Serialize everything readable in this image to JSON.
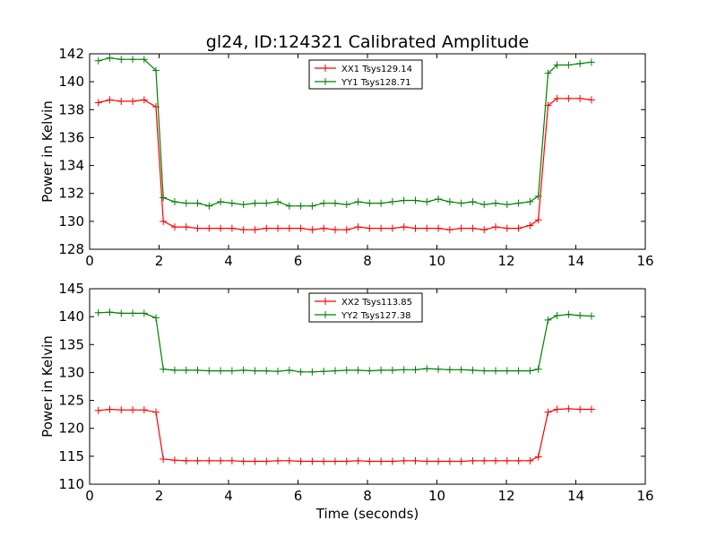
{
  "figure": {
    "title": "gl24, ID:124321 Calibrated Amplitude",
    "xlabel": "Time (seconds)"
  },
  "chart_data": [
    {
      "type": "line",
      "title": "gl24, ID:124321 Calibrated Amplitude",
      "xlabel": "",
      "ylabel": "Power in Kelvin",
      "xlim": [
        0,
        16
      ],
      "ylim": [
        128,
        142
      ],
      "xticks": [
        0,
        2,
        4,
        6,
        8,
        10,
        12,
        14,
        16
      ],
      "yticks": [
        128,
        130,
        132,
        134,
        136,
        138,
        140,
        142
      ],
      "grid": false,
      "legend_position": "top-center",
      "x": [
        0.25,
        0.58,
        0.91,
        1.24,
        1.57,
        1.91,
        2.12,
        2.45,
        2.78,
        3.11,
        3.44,
        3.77,
        4.1,
        4.43,
        4.76,
        5.09,
        5.42,
        5.75,
        6.08,
        6.41,
        6.74,
        7.07,
        7.4,
        7.73,
        8.06,
        8.39,
        8.72,
        9.05,
        9.38,
        9.71,
        10.04,
        10.37,
        10.7,
        11.03,
        11.36,
        11.69,
        12.02,
        12.35,
        12.68,
        12.92,
        13.2,
        13.46,
        13.79,
        14.12,
        14.45
      ],
      "series": [
        {
          "name": "XX1 Tsys129.14",
          "color": "#ff0000",
          "values": [
            138.5,
            138.7,
            138.6,
            138.6,
            138.7,
            138.2,
            130.0,
            129.6,
            129.6,
            129.5,
            129.5,
            129.5,
            129.5,
            129.4,
            129.4,
            129.5,
            129.5,
            129.5,
            129.5,
            129.4,
            129.5,
            129.4,
            129.4,
            129.6,
            129.5,
            129.5,
            129.5,
            129.6,
            129.5,
            129.5,
            129.5,
            129.4,
            129.5,
            129.5,
            129.4,
            129.6,
            129.5,
            129.5,
            129.7,
            130.1,
            138.3,
            138.8,
            138.8,
            138.8,
            138.7
          ]
        },
        {
          "name": "YY1 Tsys128.71",
          "color": "#008000",
          "values": [
            141.5,
            141.7,
            141.6,
            141.6,
            141.6,
            140.8,
            131.7,
            131.4,
            131.3,
            131.3,
            131.1,
            131.4,
            131.3,
            131.2,
            131.3,
            131.3,
            131.4,
            131.1,
            131.1,
            131.1,
            131.3,
            131.3,
            131.2,
            131.4,
            131.3,
            131.3,
            131.4,
            131.5,
            131.5,
            131.4,
            131.6,
            131.4,
            131.3,
            131.4,
            131.2,
            131.3,
            131.2,
            131.3,
            131.4,
            131.8,
            140.6,
            141.2,
            141.2,
            141.3,
            141.4
          ]
        }
      ]
    },
    {
      "type": "line",
      "title": "",
      "xlabel": "Time (seconds)",
      "ylabel": "Power in Kelvin",
      "xlim": [
        0,
        16
      ],
      "ylim": [
        110,
        145
      ],
      "xticks": [
        0,
        2,
        4,
        6,
        8,
        10,
        12,
        14,
        16
      ],
      "yticks": [
        110,
        115,
        120,
        125,
        130,
        135,
        140,
        145
      ],
      "grid": false,
      "legend_position": "top-center",
      "x": [
        0.25,
        0.58,
        0.91,
        1.24,
        1.57,
        1.91,
        2.12,
        2.45,
        2.78,
        3.11,
        3.44,
        3.77,
        4.1,
        4.43,
        4.76,
        5.09,
        5.42,
        5.75,
        6.08,
        6.41,
        6.74,
        7.07,
        7.4,
        7.73,
        8.06,
        8.39,
        8.72,
        9.05,
        9.38,
        9.71,
        10.04,
        10.37,
        10.7,
        11.03,
        11.36,
        11.69,
        12.02,
        12.35,
        12.68,
        12.92,
        13.2,
        13.46,
        13.79,
        14.12,
        14.45
      ],
      "series": [
        {
          "name": "XX2 Tsys113.85",
          "color": "#ff0000",
          "values": [
            123.2,
            123.4,
            123.3,
            123.3,
            123.3,
            122.9,
            114.5,
            114.3,
            114.2,
            114.2,
            114.2,
            114.2,
            114.2,
            114.1,
            114.1,
            114.1,
            114.2,
            114.2,
            114.1,
            114.1,
            114.1,
            114.1,
            114.1,
            114.2,
            114.1,
            114.1,
            114.1,
            114.2,
            114.2,
            114.1,
            114.1,
            114.1,
            114.1,
            114.2,
            114.2,
            114.2,
            114.2,
            114.2,
            114.2,
            114.9,
            122.9,
            123.4,
            123.5,
            123.4,
            123.4
          ]
        },
        {
          "name": "YY2 Tsys127.38",
          "color": "#008000",
          "values": [
            140.7,
            140.8,
            140.6,
            140.6,
            140.6,
            139.8,
            130.6,
            130.4,
            130.4,
            130.4,
            130.3,
            130.3,
            130.3,
            130.4,
            130.3,
            130.3,
            130.2,
            130.4,
            130.1,
            130.1,
            130.2,
            130.3,
            130.4,
            130.4,
            130.3,
            130.4,
            130.4,
            130.5,
            130.5,
            130.7,
            130.6,
            130.5,
            130.5,
            130.4,
            130.3,
            130.3,
            130.3,
            130.3,
            130.3,
            130.6,
            139.4,
            140.2,
            140.4,
            140.2,
            140.1
          ]
        }
      ]
    }
  ]
}
